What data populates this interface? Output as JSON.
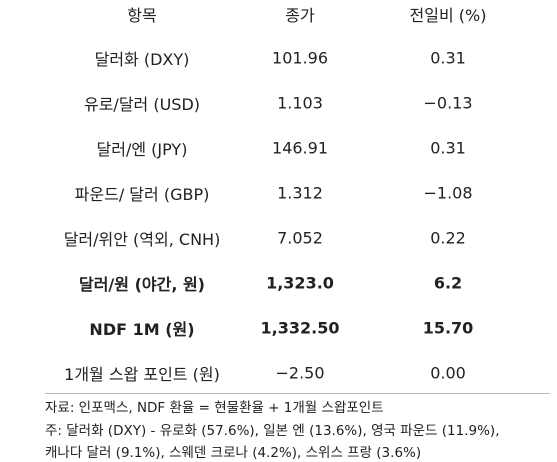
{
  "table": {
    "header": [
      "항목",
      "종가",
      "전일비 (%)"
    ],
    "rows": [
      [
        "달러화 (DXY)",
        "101.96",
        "0.31"
      ],
      [
        "유로/달러 (USD)",
        "1.103",
        "−0.13"
      ],
      [
        "달러/엔 (JPY)",
        "146.91",
        "0.31"
      ],
      [
        "파운드/ 달러 (GBP)",
        "1.312",
        "−1.08"
      ],
      [
        "달러/위안 (역외, CNH)",
        "7.052",
        "0.22"
      ],
      [
        "달러/원 (야간, 원)",
        "1,323.0",
        "6.2"
      ],
      [
        "NDF 1M (원)",
        "1,332.50",
        "15.70"
      ],
      [
        "1개월 스왑 포인트 (원)",
        "−2.50",
        "0.00"
      ]
    ],
    "bold_rows": [
      5,
      6
    ]
  },
  "notes": [
    "자료: 인포맥스, NDF 환율 = 현물환율 + 1개월 스왑포인트",
    "주: 달러화 (DXY) - 유로화 (57.6%), 일본 엔 (13.6%), 영국 파운드 (11.9%),",
    "캐나다 달러 (9.1%), 스웨덴 크로나 (4.2%), 스위스 프랑 (3.6%)"
  ]
}
